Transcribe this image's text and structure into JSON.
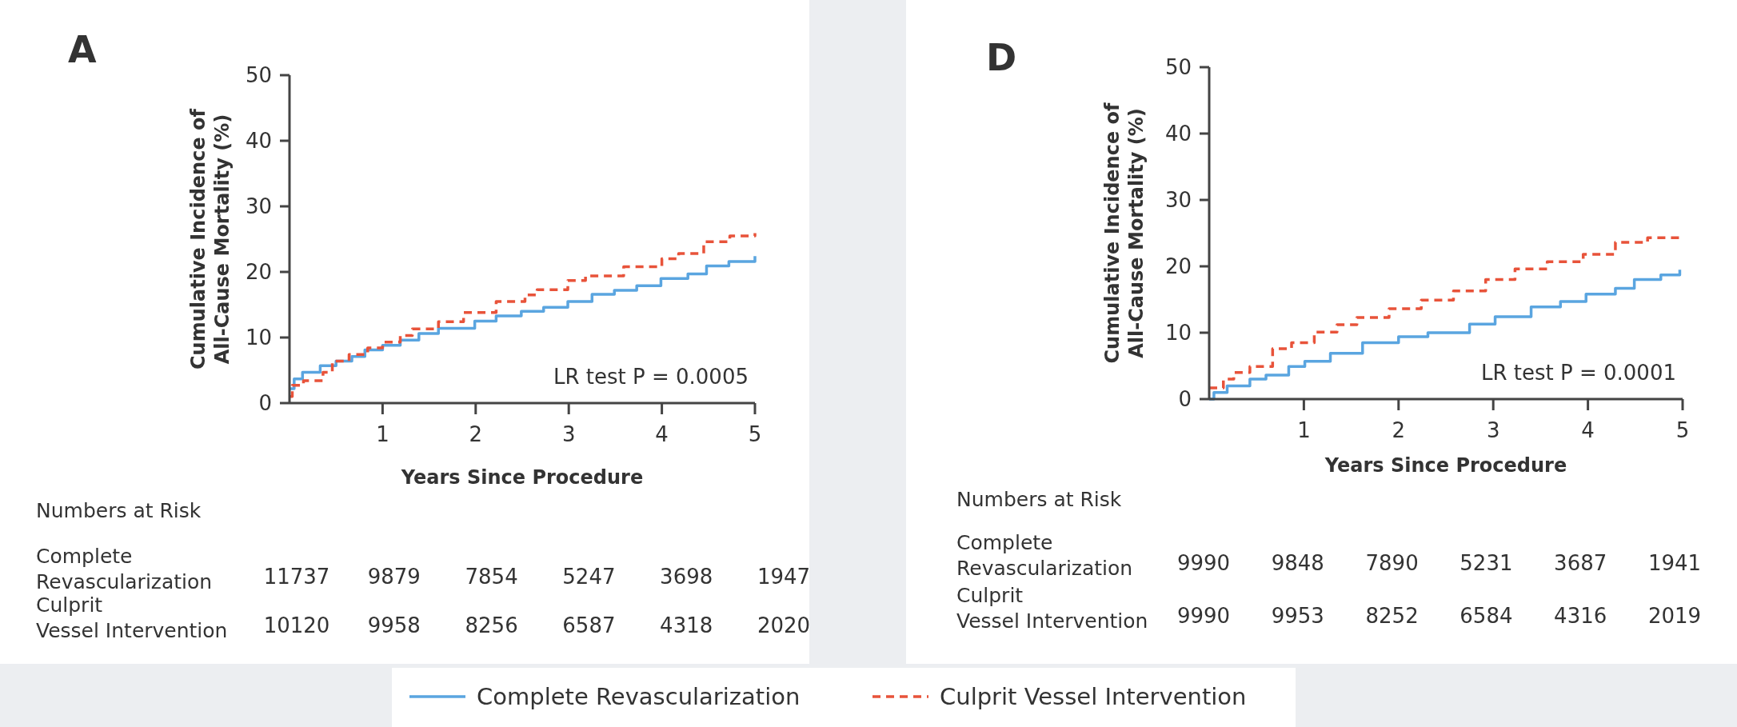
{
  "chart_data": [
    {
      "type": "step",
      "title": "A",
      "xlabel": "Years Since Procedure",
      "ylabel": "Cumulative Incidence of All-Cause Mortality (%)",
      "xlim": [
        0,
        5
      ],
      "ylim": [
        0,
        50
      ],
      "xticks": [
        1,
        2,
        3,
        4,
        5
      ],
      "yticks": [
        0,
        10,
        20,
        30,
        40,
        50
      ],
      "legend": "bottom",
      "series": [
        {
          "name": "Complete Revascularization",
          "color": "#5aa5e0",
          "line_style": "solid",
          "x": [
            0,
            0.05,
            0.14,
            0.33,
            0.5,
            0.67,
            0.81,
            1.0,
            1.19,
            1.39,
            1.6,
            1.99,
            2.22,
            2.49,
            2.73,
            2.99,
            3.25,
            3.49,
            3.73,
            3.99,
            4.28,
            4.48,
            4.72,
            5.0
          ],
          "values": [
            2.2,
            3.7,
            4.7,
            5.7,
            6.4,
            7.1,
            8.1,
            8.8,
            9.6,
            10.6,
            11.4,
            12.5,
            13.3,
            14.0,
            14.6,
            15.5,
            16.6,
            17.2,
            17.9,
            19.0,
            19.7,
            20.9,
            21.6,
            22.4
          ]
        },
        {
          "name": "Culprit Vessel Intervention",
          "color": "#e8533a",
          "line_style": "dashed",
          "x": [
            0,
            0.03,
            0.15,
            0.36,
            0.46,
            0.64,
            0.84,
            1.0,
            1.19,
            1.32,
            1.6,
            1.87,
            2.22,
            2.53,
            2.66,
            2.99,
            3.18,
            3.59,
            4.0,
            4.18,
            4.45,
            4.73,
            5.0
          ],
          "values": [
            1.0,
            2.7,
            3.4,
            4.7,
            6.4,
            7.4,
            8.4,
            9.3,
            10.3,
            11.3,
            12.4,
            13.8,
            15.5,
            16.5,
            17.3,
            18.7,
            19.4,
            20.8,
            22.0,
            22.8,
            24.6,
            25.5,
            25.9
          ]
        }
      ],
      "annotations": [
        "LR test P = 0.0005",
        "Numbers at Risk",
        "Complete Revascularization",
        "11737",
        "9879",
        "7854",
        "5247",
        "3698",
        "1947",
        "Culprit Vessel Intervention",
        "10120",
        "9958",
        "8256",
        "6587",
        "4318",
        "2020"
      ]
    },
    {
      "type": "step",
      "title": "D",
      "xlabel": "Years Since Procedure",
      "ylabel": "Cumulative Incidence of All-Cause Mortality (%)",
      "xlim": [
        0,
        5
      ],
      "ylim": [
        0,
        50
      ],
      "xticks": [
        1,
        2,
        3,
        4,
        5
      ],
      "yticks": [
        0,
        10,
        20,
        30,
        40,
        50
      ],
      "series": [
        {
          "color": "#5aa5e0",
          "line_style": "solid",
          "x": [
            0,
            0.05,
            0.19,
            0.43,
            0.6,
            0.84,
            1.01,
            1.28,
            1.62,
            2.0,
            2.31,
            2.75,
            3.02,
            3.4,
            3.71,
            3.98,
            4.29,
            4.49,
            4.77,
            4.97
          ],
          "values": [
            0,
            1.0,
            2.0,
            3.0,
            3.6,
            4.9,
            5.7,
            6.9,
            8.5,
            9.4,
            10.0,
            11.3,
            12.4,
            13.9,
            14.7,
            15.8,
            16.7,
            18.0,
            18.7,
            19.5
          ]
        },
        {
          "color": "#e8533a",
          "line_style": "dashed",
          "x": [
            0,
            0.15,
            0.26,
            0.43,
            0.67,
            0.87,
            1.11,
            1.35,
            1.56,
            1.9,
            2.24,
            2.58,
            2.92,
            3.23,
            3.57,
            3.95,
            4.29,
            4.63,
            4.97
          ],
          "values": [
            1.7,
            3.0,
            4.0,
            4.9,
            7.6,
            8.5,
            10.1,
            11.2,
            12.3,
            13.6,
            14.9,
            16.3,
            18.0,
            19.6,
            20.7,
            21.8,
            23.6,
            24.3,
            24.3
          ]
        }
      ],
      "annotations": [
        "LR test P = 0.0001",
        "Numbers at Risk",
        "Complete Revascularization",
        "9990",
        "9848",
        "7890",
        "5231",
        "3687",
        "1941",
        "Culprit Vessel Intervention",
        "9990",
        "9953",
        "8252",
        "6584",
        "4316",
        "2019"
      ]
    }
  ]
}
